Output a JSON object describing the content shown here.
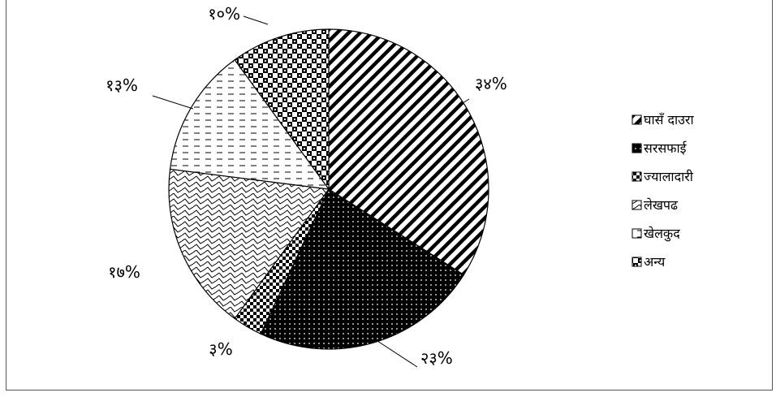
{
  "chart_data": {
    "type": "pie",
    "title": "",
    "categories": [
      "घासँ दाउरा",
      "सरसफाई",
      "ज्यालादारी",
      "लेखपढ",
      "खेलकुद",
      "अन्य"
    ],
    "values": [
      34,
      23,
      3,
      17,
      13,
      10
    ],
    "data_labels": [
      "३४%",
      "२३%",
      "३%",
      "१७%",
      "१३%",
      "१०%"
    ],
    "legend_position": "right",
    "start_angle": "12 o'clock, clockwise"
  },
  "colors": {
    "fill_dark": "#000000",
    "fill_light": "#ffffff",
    "frame": "#555555"
  }
}
